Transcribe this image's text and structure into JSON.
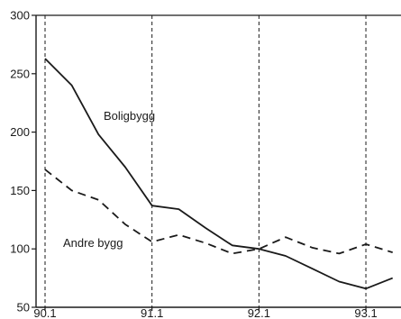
{
  "chart_data": {
    "type": "line",
    "title": "",
    "xlabel": "",
    "ylabel": "",
    "ylim": [
      50,
      300
    ],
    "xlim": [
      0,
      13.2
    ],
    "yticks": [
      50,
      100,
      150,
      200,
      250,
      300
    ],
    "xticks": [
      {
        "x": 0,
        "label": "90.1"
      },
      {
        "x": 4,
        "label": "91.1"
      },
      {
        "x": 8,
        "label": "92.1"
      },
      {
        "x": 12,
        "label": "93.1"
      }
    ],
    "grid": "vertical dashed lines at each year tick",
    "series": [
      {
        "name": "Boligbygg",
        "style": "solid",
        "color": "#1a1a1a",
        "x": [
          0,
          1,
          2,
          3,
          4,
          5,
          6,
          7,
          8,
          9,
          10,
          11,
          12,
          13
        ],
        "values": [
          263,
          240,
          198,
          170,
          137,
          134,
          118,
          103,
          100,
          94,
          83,
          72,
          66,
          75
        ]
      },
      {
        "name": "Andre bygg",
        "style": "dashed",
        "color": "#1a1a1a",
        "x": [
          0,
          1,
          2,
          3,
          4,
          5,
          6,
          7,
          8,
          9,
          10,
          11,
          12,
          13
        ],
        "values": [
          168,
          150,
          142,
          121,
          106,
          112,
          105,
          96,
          100,
          110,
          101,
          96,
          104,
          97
        ]
      }
    ]
  }
}
